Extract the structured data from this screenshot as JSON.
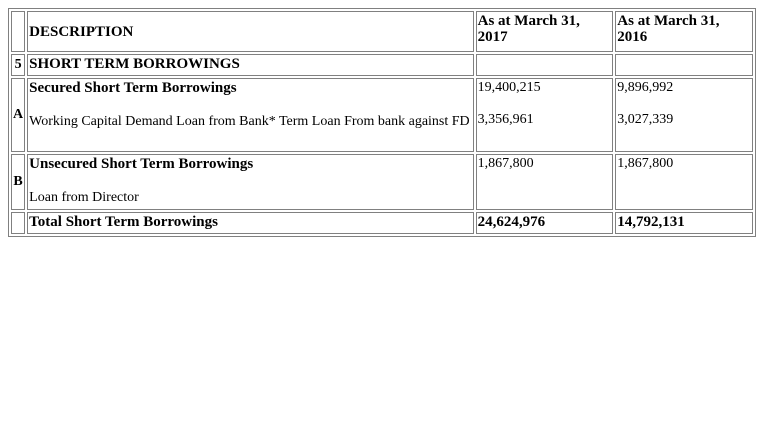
{
  "table": {
    "header": {
      "description": "DESCRIPTION",
      "year_2017": "As at March 31, 2017",
      "year_2016": "As at March 31, 2016"
    },
    "section": {
      "number": "5",
      "title": "SHORT TERM BORROWINGS"
    },
    "group_a": {
      "label": "A",
      "title": "Secured Short Term Borrowings",
      "description": "Working Capital Demand Loan from Bank* Term Loan From bank against FD",
      "values_2017": [
        "19,400,215",
        "3,356,961"
      ],
      "values_2016": [
        "9,896,992",
        "3,027,339"
      ]
    },
    "group_b": {
      "label": "B",
      "title": "Unsecured Short Term Borrowings",
      "description": "Loan from Director",
      "value_2017": "1,867,800",
      "value_2016": "1,867,800"
    },
    "total": {
      "label": "Total Short Term Borrowings",
      "value_2017": "24,624,976",
      "value_2016": "14,792,131"
    }
  }
}
